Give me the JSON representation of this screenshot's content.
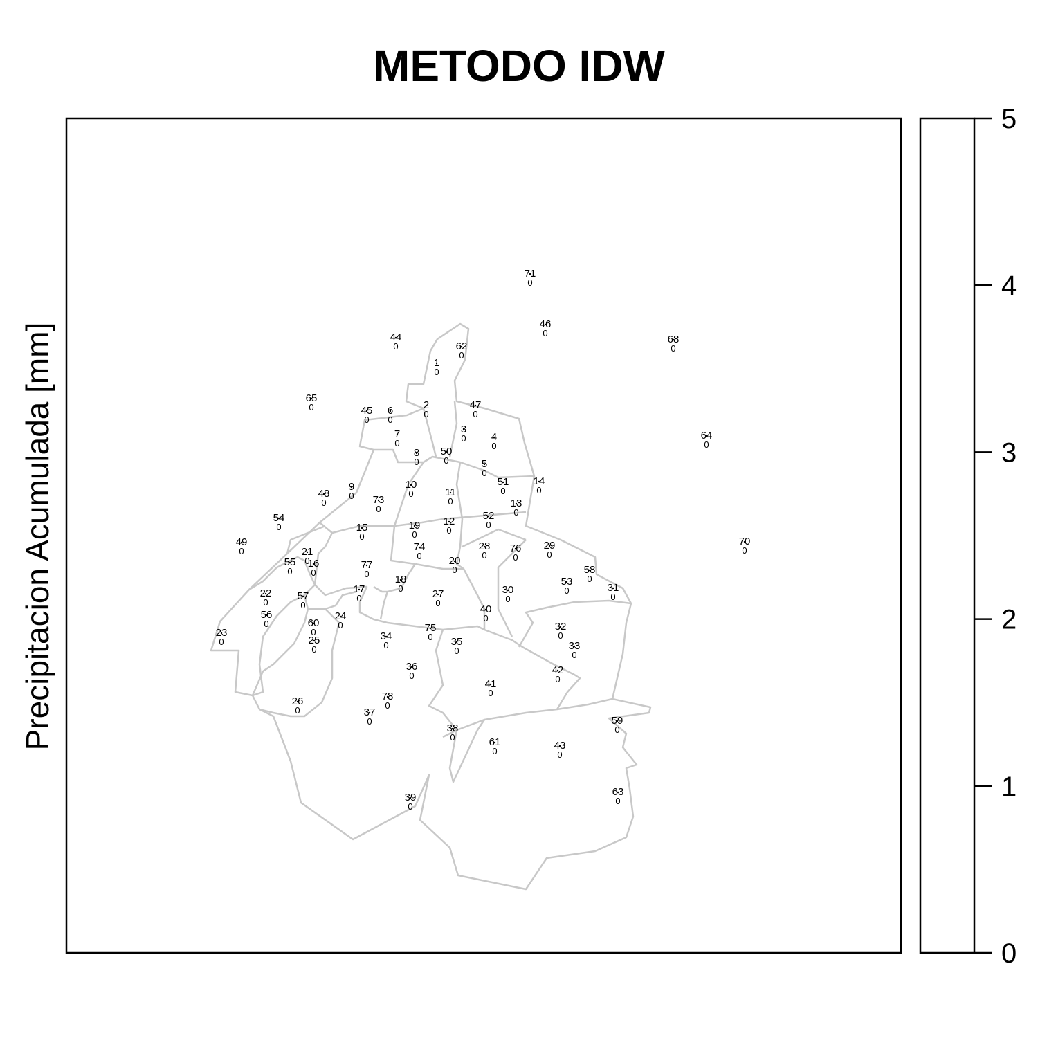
{
  "title": "METODO IDW",
  "ylabel": "Precipitacion Acumulada [mm]",
  "colorbar": {
    "min": 0,
    "max": 5,
    "ticks": [
      "0",
      "1",
      "2",
      "3",
      "4",
      "5"
    ]
  },
  "colors": {
    "boundary": "#c8c8c8",
    "frame": "#000000",
    "background": "#ffffff"
  },
  "stations": [
    {
      "id": "71",
      "value": "0"
    },
    {
      "id": "46",
      "value": "0"
    },
    {
      "id": "68",
      "value": "0"
    },
    {
      "id": "44",
      "value": "0"
    },
    {
      "id": "62",
      "value": "0"
    },
    {
      "id": "1",
      "value": "0"
    },
    {
      "id": "65",
      "value": "0"
    },
    {
      "id": "45",
      "value": "0"
    },
    {
      "id": "6",
      "value": "0"
    },
    {
      "id": "2",
      "value": "0"
    },
    {
      "id": "47",
      "value": "0"
    },
    {
      "id": "64",
      "value": "0"
    },
    {
      "id": "7",
      "value": "0"
    },
    {
      "id": "3",
      "value": "0"
    },
    {
      "id": "4",
      "value": "0"
    },
    {
      "id": "8",
      "value": "0"
    },
    {
      "id": "50",
      "value": "0"
    },
    {
      "id": "5",
      "value": "0"
    },
    {
      "id": "10",
      "value": "0"
    },
    {
      "id": "51",
      "value": "0"
    },
    {
      "id": "14",
      "value": "0"
    },
    {
      "id": "9",
      "value": "0"
    },
    {
      "id": "48",
      "value": "0"
    },
    {
      "id": "73",
      "value": "0"
    },
    {
      "id": "11",
      "value": "0"
    },
    {
      "id": "13",
      "value": "0"
    },
    {
      "id": "54",
      "value": "0"
    },
    {
      "id": "52",
      "value": "0"
    },
    {
      "id": "12",
      "value": "0"
    },
    {
      "id": "19",
      "value": "0"
    },
    {
      "id": "15",
      "value": "0"
    },
    {
      "id": "49",
      "value": "0"
    },
    {
      "id": "70",
      "value": "0"
    },
    {
      "id": "28",
      "value": "0"
    },
    {
      "id": "76",
      "value": "0"
    },
    {
      "id": "29",
      "value": "0"
    },
    {
      "id": "74",
      "value": "0"
    },
    {
      "id": "21",
      "value": "0"
    },
    {
      "id": "55",
      "value": "0"
    },
    {
      "id": "16",
      "value": "0"
    },
    {
      "id": "20",
      "value": "0"
    },
    {
      "id": "77",
      "value": "0"
    },
    {
      "id": "58",
      "value": "0"
    },
    {
      "id": "53",
      "value": "0"
    },
    {
      "id": "18",
      "value": "0"
    },
    {
      "id": "31",
      "value": "0"
    },
    {
      "id": "17",
      "value": "0"
    },
    {
      "id": "30",
      "value": "0"
    },
    {
      "id": "22",
      "value": "0"
    },
    {
      "id": "57",
      "value": "0"
    },
    {
      "id": "27",
      "value": "0"
    },
    {
      "id": "40",
      "value": "0"
    },
    {
      "id": "56",
      "value": "0"
    },
    {
      "id": "24",
      "value": "0"
    },
    {
      "id": "60",
      "value": "0"
    },
    {
      "id": "32",
      "value": "0"
    },
    {
      "id": "75",
      "value": "0"
    },
    {
      "id": "23",
      "value": "0"
    },
    {
      "id": "34",
      "value": "0"
    },
    {
      "id": "25",
      "value": "0"
    },
    {
      "id": "35",
      "value": "0"
    },
    {
      "id": "33",
      "value": "0"
    },
    {
      "id": "36",
      "value": "0"
    },
    {
      "id": "42",
      "value": "0"
    },
    {
      "id": "41",
      "value": "0"
    },
    {
      "id": "78",
      "value": "0"
    },
    {
      "id": "26",
      "value": "0"
    },
    {
      "id": "37",
      "value": "0"
    },
    {
      "id": "59",
      "value": "0"
    },
    {
      "id": "38",
      "value": "0"
    },
    {
      "id": "61",
      "value": "0"
    },
    {
      "id": "43",
      "value": "0"
    },
    {
      "id": "63",
      "value": "0"
    },
    {
      "id": "39",
      "value": "0"
    }
  ]
}
